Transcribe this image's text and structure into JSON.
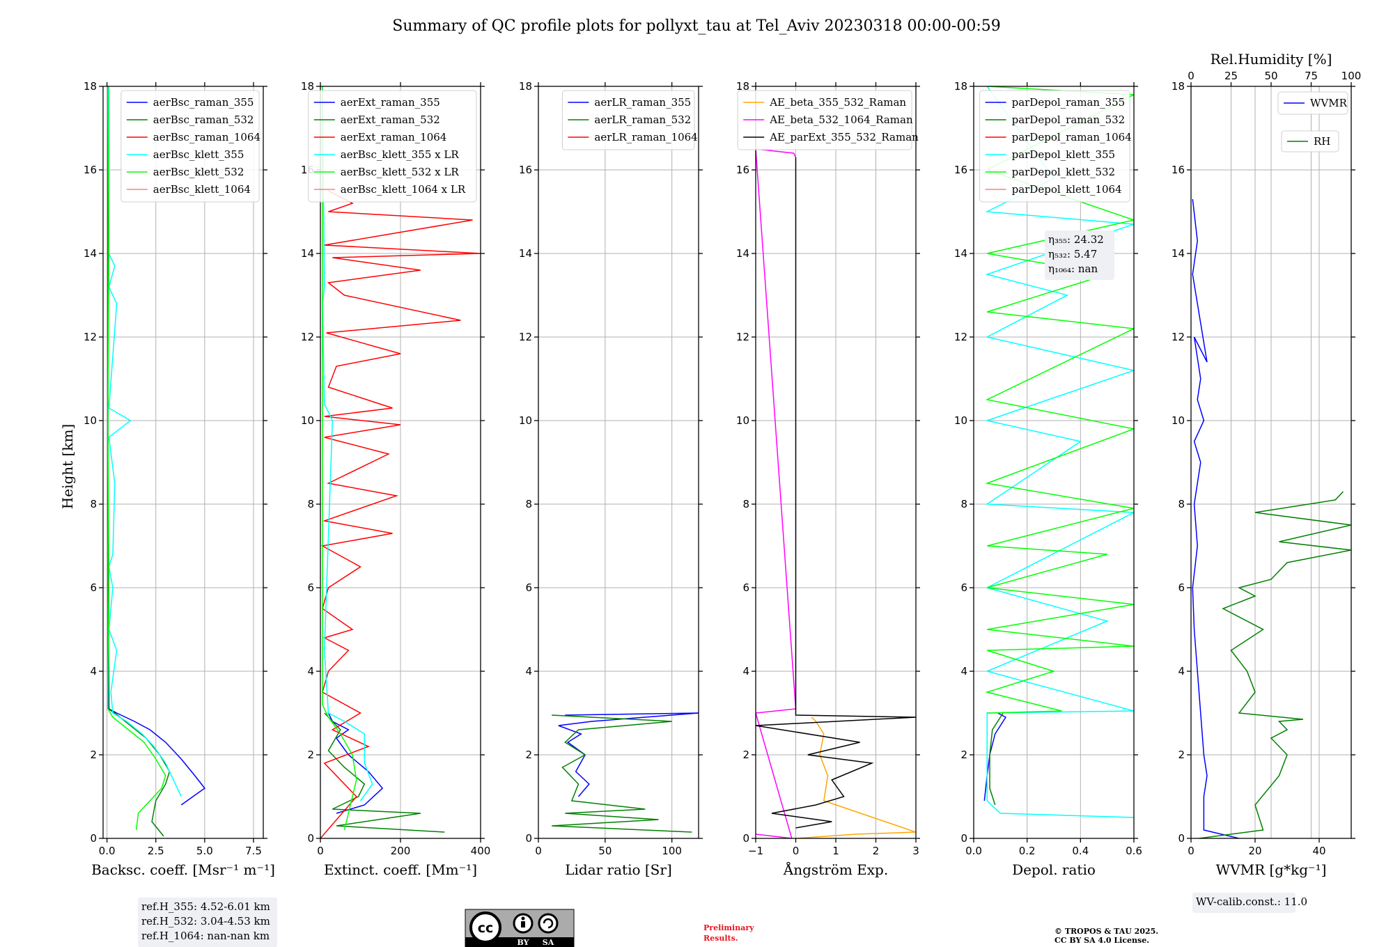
{
  "title": "Summary of QC profile plots for pollyxt_tau at Tel_Aviv 20230318 00:00-00:59",
  "ylabel": "Height [km]",
  "ylim": [
    0,
    18
  ],
  "yticks": [
    0,
    2,
    4,
    6,
    8,
    10,
    12,
    14,
    16,
    18
  ],
  "chart_data": [
    {
      "type": "line",
      "id": "backscatter",
      "xlabel": "Backsc. coeff. [Msr⁻¹ m⁻¹]",
      "xlim": [
        -0.2,
        8
      ],
      "xticks": [
        0,
        2.5,
        5,
        7.5
      ],
      "xticklabels": [
        "0.0",
        "2.5",
        "5.0",
        "7.5"
      ],
      "legend": "top-right",
      "series": [
        {
          "name": "aerBsc_raman_355",
          "color": "#0000ff",
          "x": [
            3.8,
            4.4,
            5.0,
            4.5,
            3.8,
            3.0,
            2.2,
            1.4,
            0.5,
            0.1,
            0.05,
            0.05
          ],
          "y": [
            0.8,
            1.0,
            1.2,
            1.5,
            1.9,
            2.3,
            2.6,
            2.8,
            3.0,
            3.1,
            8,
            18
          ]
        },
        {
          "name": "aerBsc_raman_532",
          "color": "#008000",
          "x": [
            2.9,
            2.3,
            2.5,
            3.0,
            3.2,
            2.7,
            2.0,
            1.2,
            0.4,
            0.05,
            0.05
          ],
          "y": [
            0.05,
            0.4,
            0.9,
            1.3,
            1.6,
            2.0,
            2.4,
            2.7,
            3.0,
            3.1,
            18
          ]
        },
        {
          "name": "aerBsc_raman_1064",
          "color": "#ff0000",
          "x": [],
          "y": []
        },
        {
          "name": "aerBsc_klett_355",
          "color": "#00ffff",
          "x": [
            3.8,
            3.4,
            3.0,
            2.4,
            1.8,
            1.0,
            0.3,
            0.2,
            0.5,
            0.1,
            0.3,
            0.1,
            0.3,
            0.4,
            0.1,
            1.2,
            0.1,
            0.5,
            0.1,
            0.4,
            0.1,
            0.1
          ],
          "y": [
            1.0,
            1.4,
            1.8,
            2.2,
            2.5,
            2.8,
            3.0,
            3.5,
            4.5,
            5.0,
            6.0,
            6.5,
            6.8,
            8.5,
            9.6,
            10.0,
            10.3,
            12.8,
            13.2,
            13.7,
            14.0,
            18
          ]
        },
        {
          "name": "aerBsc_klett_532",
          "color": "#00ff00",
          "x": [
            1.5,
            1.6,
            2.2,
            2.8,
            3.0,
            2.5,
            1.9,
            1.1,
            0.3,
            0.05,
            0.1,
            0.05,
            0.1,
            0.05
          ],
          "y": [
            0.2,
            0.6,
            0.9,
            1.2,
            1.5,
            1.9,
            2.3,
            2.6,
            2.9,
            3.1,
            6.0,
            10.0,
            14.5,
            18
          ]
        },
        {
          "name": "aerBsc_klett_1064",
          "color": "#ff8080",
          "x": [],
          "y": []
        }
      ],
      "textbox": [
        "ref.H_355: 4.52-6.01 km",
        "ref.H_532: 3.04-4.53 km",
        "ref.H_1064: nan-nan km"
      ]
    },
    {
      "type": "line",
      "id": "extinction",
      "xlabel": "Extinct. coeff. [Mm⁻¹]",
      "xlim": [
        0,
        400
      ],
      "xticks": [
        0,
        200,
        400
      ],
      "xticklabels": [
        "0",
        "200",
        "400"
      ],
      "legend": "top-right",
      "series": [
        {
          "name": "aerExt_raman_355",
          "color": "#0000ff",
          "x": [
            40,
            110,
            155,
            120,
            70,
            40,
            70,
            30,
            20
          ],
          "y": [
            0.6,
            0.8,
            1.2,
            1.6,
            2.0,
            2.4,
            2.6,
            2.8,
            3.0
          ]
        },
        {
          "name": "aerExt_raman_532",
          "color": "#008000",
          "x": [
            310,
            40,
            250,
            30,
            95,
            110,
            60,
            20,
            50,
            10
          ],
          "y": [
            0.15,
            0.3,
            0.6,
            0.7,
            1.0,
            1.3,
            1.7,
            2.1,
            2.6,
            3.0
          ]
        },
        {
          "name": "aerExt_raman_1064",
          "color": "#ff0000",
          "x": [
            0,
            90,
            10,
            120,
            30,
            100,
            5,
            20,
            70,
            10,
            80,
            5,
            20,
            100,
            5,
            180,
            10,
            190,
            20,
            170,
            10,
            200,
            10,
            180,
            20,
            40,
            200,
            15,
            350,
            60,
            20,
            250,
            30,
            400,
            10,
            380,
            20,
            80,
            20
          ],
          "y": [
            0.0,
            1.0,
            1.8,
            2.2,
            2.6,
            3.0,
            3.5,
            4.0,
            4.5,
            4.8,
            5.0,
            5.5,
            6.0,
            6.5,
            7.0,
            7.3,
            7.6,
            8.2,
            8.5,
            9.2,
            9.6,
            9.9,
            10.1,
            10.3,
            10.8,
            11.3,
            11.6,
            12.1,
            12.4,
            13.0,
            13.3,
            13.6,
            13.9,
            14.0,
            14.2,
            14.8,
            15.0,
            15.2,
            15.5
          ]
        },
        {
          "name": "aerBsc_klett_355 x LR",
          "color": "#00ffff",
          "x": [
            100,
            130,
            110,
            110,
            60,
            20,
            10,
            30,
            10,
            5,
            10,
            5
          ],
          "y": [
            0.9,
            1.3,
            1.8,
            2.5,
            2.8,
            3.0,
            4.5,
            10.0,
            10.4,
            12.8,
            13.2,
            18
          ]
        },
        {
          "name": "aerBsc_klett_532 x LR",
          "color": "#00ff00",
          "x": [
            60,
            75,
            90,
            80,
            50,
            20,
            5,
            5
          ],
          "y": [
            0.2,
            0.8,
            1.4,
            2.0,
            2.5,
            2.9,
            3.2,
            18
          ]
        },
        {
          "name": "aerBsc_klett_1064 x LR",
          "color": "#ff8080",
          "x": [],
          "y": []
        }
      ]
    },
    {
      "type": "line",
      "id": "lidar-ratio",
      "xlabel": "Lidar ratio [Sr]",
      "xlim": [
        0,
        120
      ],
      "xticks": [
        0,
        50,
        100
      ],
      "xticklabels": [
        "0",
        "50",
        "100"
      ],
      "legend": "top-right",
      "series": [
        {
          "name": "aerLR_raman_355",
          "color": "#0000ff",
          "x": [
            30,
            38,
            28,
            35,
            22,
            32,
            15,
            40,
            120,
            20
          ],
          "y": [
            1.0,
            1.3,
            1.6,
            2.0,
            2.3,
            2.5,
            2.7,
            2.8,
            3.0,
            2.95
          ]
        },
        {
          "name": "aerLR_raman_532",
          "color": "#008000",
          "x": [
            115,
            10,
            90,
            20,
            80,
            25,
            30,
            18,
            35,
            20,
            30,
            100,
            10
          ],
          "y": [
            0.15,
            0.3,
            0.45,
            0.6,
            0.7,
            0.9,
            1.3,
            1.7,
            2.0,
            2.3,
            2.6,
            2.8,
            2.95
          ]
        },
        {
          "name": "aerLR_raman_1064",
          "color": "#ff0000",
          "x": [],
          "y": []
        }
      ]
    },
    {
      "type": "line",
      "id": "angstrom",
      "xlabel": "Ångström Exp.",
      "xlim": [
        -1,
        3
      ],
      "xticks": [
        -1,
        0,
        1,
        2,
        3
      ],
      "xticklabels": [
        "−1",
        "0",
        "1",
        "2",
        "3"
      ],
      "legend": "top-right",
      "series": [
        {
          "name": "AE_beta_355_532_Raman",
          "color": "#ffa500",
          "x": [
            0.0,
            1.5,
            3.0,
            0.7,
            0.8,
            0.6,
            0.7,
            0.5,
            0.4
          ],
          "y": [
            0.0,
            0.1,
            0.15,
            0.9,
            1.5,
            2.0,
            2.5,
            2.8,
            2.9
          ]
        },
        {
          "name": "AE_beta_532_1064_Raman",
          "color": "#ff00ff",
          "x": [
            -1.0,
            -0.1,
            -1.0,
            0.0,
            -1.0,
            -0.05,
            0.0
          ],
          "y": [
            0.1,
            0.0,
            3.0,
            3.1,
            16.5,
            16.4,
            16.3
          ]
        },
        {
          "name": "AE_parExt_355_532_Raman",
          "color": "#000000",
          "x": [
            0.0,
            0.9,
            -0.6,
            0.5,
            1.2,
            0.9,
            1.9,
            0.3,
            1.6,
            -1.0,
            3.0,
            0.0,
            0.0
          ],
          "y": [
            0.25,
            0.4,
            0.6,
            0.8,
            1.0,
            1.4,
            1.8,
            2.0,
            2.3,
            2.7,
            2.9,
            2.95,
            16.3
          ]
        }
      ]
    },
    {
      "type": "line",
      "id": "depolarization",
      "xlabel": "Depol. ratio",
      "xlim": [
        0,
        0.6
      ],
      "xticks": [
        0,
        0.2,
        0.4,
        0.6
      ],
      "xticklabels": [
        "0.0",
        "0.2",
        "0.4",
        "0.6"
      ],
      "legend": "top-right",
      "series": [
        {
          "name": "parDepol_raman_355",
          "color": "#0000ff",
          "x": [
            0.04,
            0.05,
            0.06,
            0.08,
            0.12,
            0.09
          ],
          "y": [
            0.9,
            1.5,
            2.0,
            2.5,
            2.9,
            3.0
          ]
        },
        {
          "name": "parDepol_raman_532",
          "color": "#008000",
          "x": [
            0.08,
            0.06,
            0.06,
            0.07,
            0.11
          ],
          "y": [
            0.8,
            1.2,
            2.0,
            2.6,
            3.0
          ]
        },
        {
          "name": "parDepol_raman_1064",
          "color": "#ff0000",
          "x": [],
          "y": []
        },
        {
          "name": "parDepol_klett_355",
          "color": "#00ffff",
          "x": [
            0.6,
            0.1,
            0.05,
            0.05,
            0.6,
            0.05,
            0.5,
            0.05,
            0.6,
            0.05,
            0.4,
            0.05,
            0.6,
            0.05,
            0.35,
            0.05,
            0.6,
            0.05,
            0.3,
            0.05
          ],
          "y": [
            0.5,
            0.6,
            0.9,
            3.0,
            3.05,
            4.0,
            5.2,
            6.0,
            7.8,
            8.0,
            9.5,
            10.0,
            11.2,
            12.0,
            13.0,
            13.5,
            14.7,
            15.0,
            15.8,
            18
          ]
        },
        {
          "name": "parDepol_klett_532",
          "color": "#00ff00",
          "x": [
            0.05,
            0.33,
            0.05,
            0.3,
            0.05,
            0.6,
            0.05,
            0.6,
            0.05,
            0.5,
            0.05,
            0.6,
            0.05,
            0.6,
            0.05,
            0.6,
            0.05,
            0.5,
            0.05,
            0.6,
            0.05,
            0.6,
            0.05
          ],
          "y": [
            3.0,
            3.05,
            3.5,
            4.0,
            4.5,
            4.6,
            5.0,
            5.6,
            6.0,
            6.8,
            7.0,
            7.9,
            8.5,
            9.8,
            10.5,
            12.2,
            12.6,
            13.5,
            14.0,
            14.8,
            16.0,
            17.8,
            18
          ]
        },
        {
          "name": "parDepol_klett_1064",
          "color": "#ff8080",
          "x": [],
          "y": []
        }
      ],
      "textbox": [
        "η₃₅₅: 24.32",
        "η₅₃₂: 5.47",
        "η₁₀₆₄: nan"
      ]
    },
    {
      "type": "line",
      "id": "water-vapor",
      "xlabel": "WVMR [g*kg⁻¹]",
      "xlim": [
        0,
        50
      ],
      "xticks": [
        0,
        20,
        40
      ],
      "xticklabels": [
        "0",
        "20",
        "40"
      ],
      "x2label": "Rel.Humidity [%]",
      "x2lim": [
        0,
        100
      ],
      "x2ticks": [
        0,
        25,
        50,
        75,
        100
      ],
      "x2ticklabels": [
        "0",
        "25",
        "50",
        "75",
        "100"
      ],
      "legend": "top-right",
      "series": [
        {
          "name": "WVMR",
          "color": "#0000ff",
          "axis": "x",
          "x": [
            15,
            4,
            4,
            5,
            4,
            3,
            2,
            1,
            0.5,
            2,
            1,
            3,
            1,
            4,
            2,
            3,
            1,
            5,
            0.5,
            2,
            0.5
          ],
          "y": [
            0.0,
            0.2,
            1.0,
            1.5,
            2.0,
            3.0,
            4.0,
            5.0,
            6.0,
            7.0,
            8.0,
            9.0,
            9.5,
            10.0,
            10.5,
            11.0,
            12.0,
            11.4,
            13.5,
            14.3,
            15.3
          ]
        },
        {
          "name": "RH",
          "color": "#008000",
          "axis": "x2",
          "x": [
            5,
            45,
            40,
            55,
            60,
            50,
            60,
            55,
            70,
            30,
            40,
            35,
            25,
            45,
            20,
            40,
            30,
            50,
            60,
            100,
            55,
            100,
            40,
            90,
            95
          ],
          "y": [
            0.0,
            0.2,
            0.8,
            1.5,
            2.0,
            2.4,
            2.6,
            2.8,
            2.85,
            3.0,
            3.5,
            4.0,
            4.5,
            5.0,
            5.5,
            5.8,
            6.0,
            6.2,
            6.6,
            6.9,
            7.1,
            7.5,
            7.8,
            8.1,
            8.3
          ]
        }
      ],
      "textbox": [
        "WV-calib.const.: 11.0"
      ]
    }
  ],
  "footer": {
    "cc_by": "BY",
    "cc_sa": "SA",
    "preliminary_1": "Preliminary",
    "preliminary_2": "Results.",
    "copyright_1": "© TROPOS & TAU 2025.",
    "copyright_2": "CC BY SA 4.0 License."
  }
}
